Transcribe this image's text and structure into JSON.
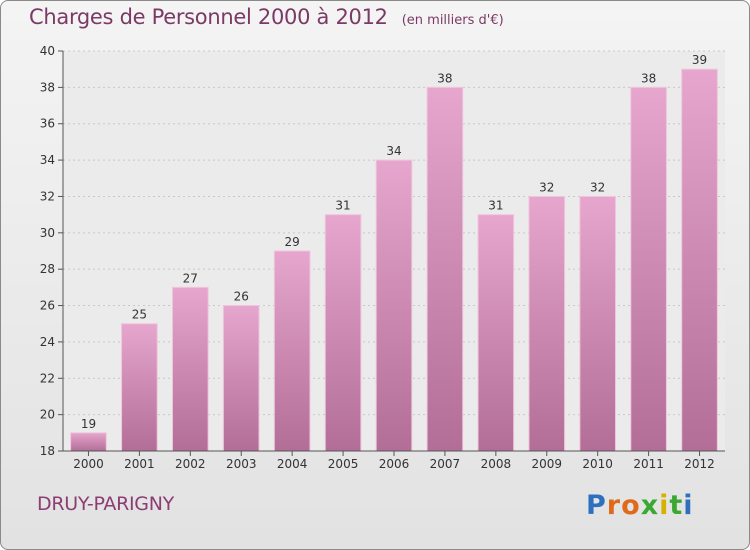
{
  "chart_data": {
    "type": "bar",
    "title": "Charges de Personnel 2000 à 2012",
    "subtitle": "(en milliers d'€)",
    "categories": [
      "2000",
      "2001",
      "2002",
      "2003",
      "2004",
      "2005",
      "2006",
      "2007",
      "2008",
      "2009",
      "2010",
      "2011",
      "2012"
    ],
    "values": [
      19,
      25,
      27,
      26,
      29,
      31,
      34,
      38,
      31,
      32,
      32,
      38,
      39
    ],
    "ylim": [
      18,
      40
    ],
    "yticks": [
      18,
      20,
      22,
      24,
      26,
      28,
      30,
      32,
      34,
      36,
      38,
      40
    ],
    "xlabel": "",
    "ylabel": "",
    "grid": true,
    "bar_color": "#d48ab6"
  },
  "commune": "DRUY-PARIGNY",
  "brand": {
    "name": "Proxiti",
    "letters": [
      "P",
      "r",
      "o",
      "x",
      "i",
      "t",
      "i"
    ],
    "colors": [
      "#2f6fc0",
      "#e06a1a",
      "#e06a1a",
      "#3aa832",
      "#d8b000",
      "#3aa832",
      "#2f6fc0"
    ]
  }
}
